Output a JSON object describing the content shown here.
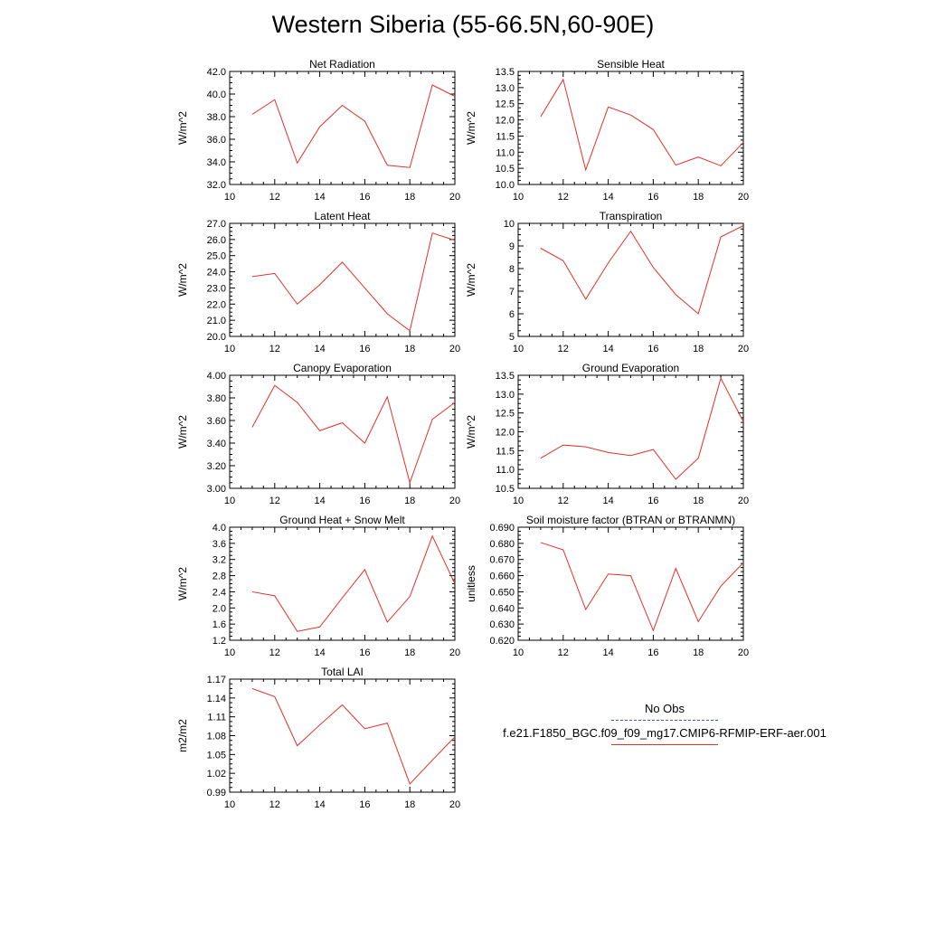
{
  "figure": {
    "title": "Western Siberia (55-66.5N,60-90E)"
  },
  "legend": {
    "entries": [
      {
        "label": "No Obs",
        "style": "dashed",
        "color": "#4a5a8a"
      },
      {
        "label": "f.e21.F1850_BGC.f09_f09_mg17.CMIP6-RFMIP-ERF-aer.001",
        "style": "solid",
        "color": "#e0302a"
      }
    ]
  },
  "chart_data": [
    {
      "type": "line",
      "title": "Net Radiation",
      "ylabel": "W/m^2",
      "xlim": [
        10,
        20
      ],
      "ylim": [
        32.0,
        42.0
      ],
      "xticks": [
        10,
        12,
        14,
        16,
        18,
        20
      ],
      "yticks": [
        32.0,
        34.0,
        36.0,
        38.0,
        40.0,
        42.0
      ],
      "ydecimals": 1,
      "x": [
        11,
        12,
        13,
        14,
        15,
        16,
        17,
        18,
        19,
        20
      ],
      "series": [
        {
          "color": "#e0302a",
          "values": [
            38.2,
            39.5,
            33.9,
            37.1,
            39.0,
            37.6,
            33.7,
            33.5,
            40.8,
            39.8
          ]
        }
      ]
    },
    {
      "type": "line",
      "title": "Sensible Heat",
      "ylabel": "W/m^2",
      "xlim": [
        10,
        20
      ],
      "ylim": [
        10.0,
        13.5
      ],
      "xticks": [
        10,
        12,
        14,
        16,
        18,
        20
      ],
      "yticks": [
        10.0,
        10.5,
        11.0,
        11.5,
        12.0,
        12.5,
        13.0,
        13.5
      ],
      "ydecimals": 1,
      "x": [
        11,
        12,
        13,
        14,
        15,
        16,
        17,
        18,
        19,
        20
      ],
      "series": [
        {
          "color": "#e0302a",
          "values": [
            12.1,
            13.25,
            10.45,
            12.4,
            12.15,
            11.7,
            10.6,
            10.85,
            10.58,
            11.3
          ]
        }
      ]
    },
    {
      "type": "line",
      "title": "Latent Heat",
      "ylabel": "W/m^2",
      "xlim": [
        10,
        20
      ],
      "ylim": [
        20.0,
        27.0
      ],
      "xticks": [
        10,
        12,
        14,
        16,
        18,
        20
      ],
      "yticks": [
        20.0,
        21.0,
        22.0,
        23.0,
        24.0,
        25.0,
        26.0,
        27.0
      ],
      "ydecimals": 1,
      "x": [
        11,
        12,
        13,
        14,
        15,
        16,
        17,
        18,
        19,
        20
      ],
      "series": [
        {
          "color": "#e0302a",
          "values": [
            23.7,
            23.9,
            22.0,
            23.2,
            24.6,
            23.0,
            21.4,
            20.35,
            26.4,
            25.95
          ]
        }
      ]
    },
    {
      "type": "line",
      "title": "Transpiration",
      "ylabel": "W/m^2",
      "xlim": [
        10,
        20
      ],
      "ylim": [
        5,
        10
      ],
      "xticks": [
        10,
        12,
        14,
        16,
        18,
        20
      ],
      "yticks": [
        5,
        6,
        7,
        8,
        9,
        10
      ],
      "ydecimals": 0,
      "x": [
        11,
        12,
        13,
        14,
        15,
        16,
        17,
        18,
        19,
        20
      ],
      "series": [
        {
          "color": "#e0302a",
          "values": [
            8.9,
            8.35,
            6.65,
            8.25,
            9.65,
            8.05,
            6.85,
            6.0,
            9.4,
            9.9
          ]
        }
      ]
    },
    {
      "type": "line",
      "title": "Canopy Evaporation",
      "ylabel": "W/m^2",
      "xlim": [
        10,
        20
      ],
      "ylim": [
        3.0,
        4.0
      ],
      "xticks": [
        10,
        12,
        14,
        16,
        18,
        20
      ],
      "yticks": [
        3.0,
        3.2,
        3.4,
        3.6,
        3.8,
        4.0
      ],
      "ydecimals": 2,
      "x": [
        11,
        12,
        13,
        14,
        15,
        16,
        17,
        18,
        19,
        20
      ],
      "series": [
        {
          "color": "#e0302a",
          "values": [
            3.54,
            3.91,
            3.76,
            3.51,
            3.58,
            3.4,
            3.81,
            3.05,
            3.61,
            3.76
          ]
        }
      ]
    },
    {
      "type": "line",
      "title": "Ground Evaporation",
      "ylabel": "W/m^2",
      "xlim": [
        10,
        20
      ],
      "ylim": [
        10.5,
        13.5
      ],
      "xticks": [
        10,
        12,
        14,
        16,
        18,
        20
      ],
      "yticks": [
        10.5,
        11.0,
        11.5,
        12.0,
        12.5,
        13.0,
        13.5
      ],
      "ydecimals": 1,
      "x": [
        11,
        12,
        13,
        14,
        15,
        16,
        17,
        18,
        19,
        20
      ],
      "series": [
        {
          "color": "#e0302a",
          "values": [
            11.3,
            11.65,
            11.6,
            11.45,
            11.37,
            11.53,
            10.74,
            11.3,
            13.42,
            12.27
          ]
        }
      ]
    },
    {
      "type": "line",
      "title": "Ground Heat + Snow Melt",
      "ylabel": "W/m^2",
      "xlim": [
        10,
        20
      ],
      "ylim": [
        1.2,
        4.0
      ],
      "xticks": [
        10,
        12,
        14,
        16,
        18,
        20
      ],
      "yticks": [
        1.2,
        1.6,
        2.0,
        2.4,
        2.8,
        3.2,
        3.6,
        4.0
      ],
      "ydecimals": 1,
      "x": [
        11,
        12,
        13,
        14,
        15,
        16,
        17,
        18,
        19,
        20
      ],
      "series": [
        {
          "color": "#e0302a",
          "values": [
            2.4,
            2.3,
            1.42,
            1.53,
            2.25,
            2.95,
            1.65,
            2.28,
            3.78,
            2.6
          ]
        }
      ]
    },
    {
      "type": "line",
      "title": "Soil moisture factor (BTRAN or BTRANMN)",
      "ylabel": "unitless",
      "xlim": [
        10,
        20
      ],
      "ylim": [
        0.62,
        0.69
      ],
      "xticks": [
        10,
        12,
        14,
        16,
        18,
        20
      ],
      "yticks": [
        0.62,
        0.63,
        0.64,
        0.65,
        0.66,
        0.67,
        0.68,
        0.69
      ],
      "ydecimals": 3,
      "x": [
        11,
        12,
        13,
        14,
        15,
        16,
        17,
        18,
        19,
        20
      ],
      "series": [
        {
          "color": "#e0302a",
          "values": [
            0.6805,
            0.676,
            0.639,
            0.661,
            0.66,
            0.626,
            0.6645,
            0.6315,
            0.6535,
            0.668
          ]
        }
      ]
    },
    {
      "type": "line",
      "title": "Total LAI",
      "ylabel": "m2/m2",
      "xlim": [
        10,
        20
      ],
      "ylim": [
        0.99,
        1.17
      ],
      "xticks": [
        10,
        12,
        14,
        16,
        18,
        20
      ],
      "yticks": [
        0.99,
        1.02,
        1.05,
        1.08,
        1.11,
        1.14,
        1.17
      ],
      "ydecimals": 2,
      "x": [
        11,
        12,
        13,
        14,
        15,
        16,
        17,
        18,
        19,
        20
      ],
      "series": [
        {
          "color": "#e0302a",
          "values": [
            1.155,
            1.142,
            1.064,
            1.097,
            1.129,
            1.091,
            1.1,
            1.003,
            1.041,
            1.078
          ]
        }
      ]
    }
  ]
}
